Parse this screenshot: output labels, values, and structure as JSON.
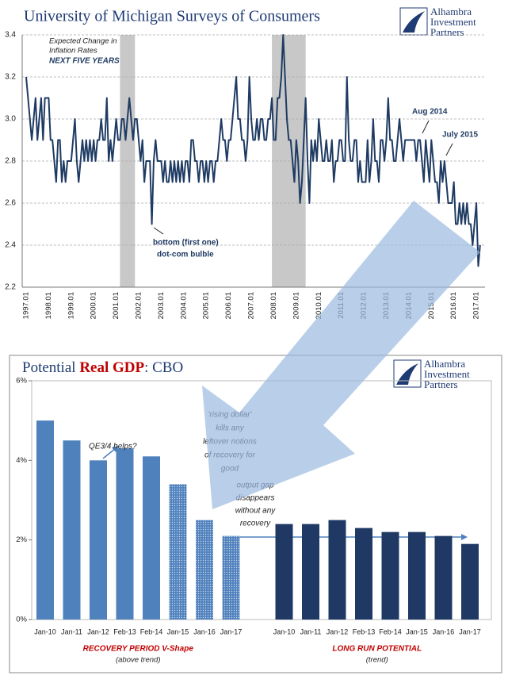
{
  "logo": [
    "Alhambra",
    "Investment",
    "Partners"
  ],
  "chart_data": [
    {
      "type": "line",
      "title": "University of Michigan Surveys of Consumers",
      "note": [
        "Expected Change in",
        "Inflation Rates"
      ],
      "note_bold": "NEXT FIVE YEARS",
      "annotations": [
        "Aug 2014",
        "July 2015",
        "bottom (first one)",
        "dot-com bulble"
      ],
      "color": "#1f3b63",
      "shaded_periods": [
        {
          "start": "2001.03",
          "end": "2001.11"
        },
        {
          "start": "2007.12",
          "end": "2009.06"
        }
      ],
      "shade_color": "#c8c8c8",
      "ylim": [
        2.2,
        3.4
      ],
      "yticks": [
        2.2,
        2.4,
        2.6,
        2.8,
        {
          "value": 3,
          "label": "3.0"
        },
        3.2,
        3.4
      ],
      "grid": true,
      "categories": [
        "1997.01",
        null,
        null,
        null,
        null,
        null,
        null,
        null,
        null,
        null,
        null,
        null,
        "1998.01",
        null,
        null,
        null,
        null,
        null,
        null,
        null,
        null,
        null,
        null,
        null,
        "1999.01",
        null,
        null,
        null,
        null,
        null,
        null,
        null,
        null,
        null,
        null,
        null,
        "2000.01",
        null,
        null,
        null,
        null,
        null,
        null,
        null,
        null,
        null,
        null,
        null,
        "2001.01",
        null,
        null,
        null,
        null,
        null,
        null,
        null,
        null,
        null,
        null,
        null,
        "2002.01",
        null,
        null,
        null,
        null,
        null,
        null,
        null,
        null,
        null,
        null,
        null,
        "2003.01",
        null,
        null,
        null,
        null,
        null,
        null,
        null,
        null,
        null,
        null,
        null,
        "2004.01",
        null,
        null,
        null,
        null,
        null,
        null,
        null,
        null,
        null,
        null,
        null,
        "2005.01",
        null,
        null,
        null,
        null,
        null,
        null,
        null,
        null,
        null,
        null,
        null,
        "2006.01",
        null,
        null,
        null,
        null,
        null,
        null,
        null,
        null,
        null,
        null,
        null,
        "2007.01",
        null,
        null,
        null,
        null,
        null,
        null,
        null,
        null,
        null,
        null,
        null,
        "2008.01",
        null,
        null,
        null,
        null,
        null,
        null,
        null,
        null,
        null,
        null,
        null,
        "2009.01",
        null,
        null,
        null,
        null,
        null,
        null,
        null,
        null,
        null,
        null,
        null,
        "2010.01",
        null,
        null,
        null,
        null,
        null,
        null,
        null,
        null,
        null,
        null,
        null,
        "2011.01",
        null,
        null,
        null,
        null,
        null,
        null,
        null,
        null,
        null,
        null,
        null,
        "2012.01",
        null,
        null,
        null,
        null,
        null,
        null,
        null,
        null,
        null,
        null,
        null,
        "2013.01",
        null,
        null,
        null,
        null,
        null,
        null,
        null,
        null,
        null,
        null,
        null,
        "2014.01",
        null,
        null,
        null,
        null,
        null,
        null,
        null,
        null,
        null,
        null,
        null,
        "2015.01",
        null,
        null,
        null,
        null,
        null,
        null,
        null,
        null,
        null,
        null,
        null,
        "2016.01",
        null,
        null,
        null,
        null,
        null,
        null,
        null,
        null,
        null,
        null,
        null,
        "2017.01",
        null,
        null
      ],
      "values": [
        3.2,
        3.1,
        3.0,
        2.9,
        3.0,
        3.1,
        2.9,
        3.0,
        3.1,
        2.9,
        3.1,
        3.1,
        3.1,
        2.9,
        2.9,
        2.8,
        2.7,
        2.9,
        2.9,
        2.7,
        2.8,
        2.7,
        2.8,
        2.8,
        2.8,
        2.9,
        3.0,
        2.8,
        2.7,
        2.8,
        2.9,
        2.8,
        2.9,
        2.8,
        2.9,
        2.8,
        2.9,
        2.8,
        2.9,
        2.9,
        3.0,
        2.9,
        2.9,
        3.1,
        2.8,
        2.9,
        2.8,
        2.9,
        3.0,
        2.9,
        2.9,
        3.0,
        3.0,
        2.9,
        3.0,
        3.1,
        3.0,
        2.9,
        3.0,
        3.0,
        2.9,
        2.8,
        2.9,
        2.7,
        2.8,
        2.8,
        2.8,
        2.5,
        2.8,
        2.9,
        2.8,
        2.8,
        2.8,
        2.7,
        2.8,
        2.7,
        2.7,
        2.8,
        2.7,
        2.8,
        2.7,
        2.8,
        2.7,
        2.8,
        2.7,
        2.8,
        2.8,
        2.7,
        2.9,
        2.9,
        2.8,
        2.8,
        2.7,
        2.8,
        2.8,
        2.7,
        2.8,
        2.7,
        2.8,
        2.8,
        2.7,
        2.8,
        2.8,
        2.9,
        3.0,
        2.9,
        2.9,
        2.8,
        2.9,
        2.9,
        3.0,
        3.1,
        3.2,
        3.0,
        3.0,
        2.9,
        2.9,
        2.8,
        2.9,
        3.2,
        3.0,
        2.9,
        2.9,
        3.0,
        2.9,
        3.0,
        3.0,
        2.9,
        2.9,
        3.0,
        3.0,
        3.1,
        2.9,
        2.9,
        3.1,
        3.1,
        3.2,
        3.4,
        3.2,
        3.0,
        2.9,
        2.9,
        2.8,
        2.7,
        2.9,
        2.8,
        2.6,
        2.7,
        2.9,
        3.1,
        2.8,
        2.6,
        2.9,
        2.8,
        2.9,
        2.8,
        3.0,
        2.9,
        2.8,
        2.8,
        2.9,
        2.8,
        2.8,
        2.9,
        2.7,
        2.8,
        2.8,
        2.9,
        2.9,
        2.8,
        2.8,
        3.2,
        2.9,
        2.8,
        2.8,
        2.9,
        2.9,
        2.7,
        2.8,
        2.7,
        2.7,
        2.7,
        2.9,
        2.7,
        2.8,
        3.0,
        2.8,
        2.8,
        2.7,
        2.9,
        2.9,
        2.8,
        2.9,
        3.1,
        2.9,
        2.9,
        2.8,
        2.8,
        2.9,
        3.0,
        2.9,
        2.8,
        2.9,
        2.9,
        2.9,
        2.9,
        2.9,
        2.9,
        2.8,
        2.9,
        2.9,
        2.8,
        2.7,
        2.9,
        2.8,
        2.7,
        2.9,
        2.8,
        2.7,
        2.7,
        2.6,
        2.8,
        2.7,
        2.8,
        2.7,
        2.6,
        2.6,
        2.6,
        2.7,
        2.5,
        2.5,
        2.6,
        2.5,
        2.6,
        2.5,
        2.6,
        2.5,
        2.5,
        2.4,
        2.5,
        2.6,
        2.3,
        2.4
      ]
    },
    {
      "type": "bar",
      "title": "Potential",
      "title_highlight": "Real GDP",
      "title_suffix": ": CBO",
      "ylim": [
        0,
        6
      ],
      "yticks": [
        {
          "value": 0,
          "label": "0%"
        },
        {
          "value": 2,
          "label": "2%"
        },
        {
          "value": 4,
          "label": "4%"
        },
        {
          "value": 6,
          "label": "6%"
        }
      ],
      "grid": false,
      "annotations": {
        "qe": "QE3/4 helps?",
        "dollar": [
          "'rising dollar'",
          "kills any",
          "leftover notions",
          "of recovery for",
          "good"
        ],
        "gap": [
          "output gap",
          "disappears",
          "without any",
          "recovery"
        ]
      },
      "groups": [
        {
          "label": "RECOVERY PERIOD V-Shape",
          "sublabel": "(above trend)",
          "color": "#4f81bd",
          "categories": [
            "Jan-10",
            "Jan-11",
            "Jan-12",
            "Feb-13",
            "Feb-14",
            "Jan-15",
            "Jan-16",
            "Jan-17"
          ],
          "values": [
            5.0,
            4.5,
            4.0,
            4.3,
            4.1,
            3.4,
            2.5,
            2.1
          ],
          "dotted": [
            false,
            false,
            false,
            false,
            false,
            true,
            true,
            true
          ]
        },
        {
          "label": "LONG RUN POTENTIAL",
          "sublabel": "(trend)",
          "color": "#1f3864",
          "categories": [
            "Jan-10",
            "Jan-11",
            "Jan-12",
            "Feb-13",
            "Feb-14",
            "Jan-15",
            "Jan-16",
            "Jan-17"
          ],
          "values": [
            2.4,
            2.4,
            2.5,
            2.3,
            2.2,
            2.2,
            2.1,
            1.9
          ],
          "dotted": [
            false,
            false,
            false,
            false,
            false,
            false,
            false,
            false
          ]
        }
      ]
    }
  ]
}
